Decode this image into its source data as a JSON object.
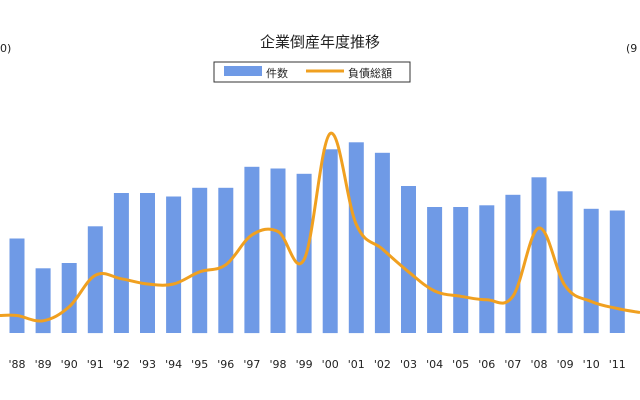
{
  "chart_data": {
    "type": "bar",
    "title": "企業倒産年度推移",
    "legend": {
      "placement": "top-center",
      "bar_label": "件数",
      "line_label": "負債総額"
    },
    "left_axis_fragment": "0)",
    "right_axis_fragment": "(9",
    "categories": [
      "'88",
      "'89",
      "'90",
      "'91",
      "'92",
      "'93",
      "'94",
      "'95",
      "'96",
      "'97",
      "'98",
      "'99",
      "'00",
      "'01",
      "'02",
      "'03",
      "'04",
      "'05",
      "'06",
      "'07",
      "'08",
      "'09",
      "'10",
      "'11"
    ],
    "series": [
      {
        "name": "件数",
        "type": "bar",
        "color": "#6f9ae6",
        "values": [
          54,
          37,
          40,
          61,
          80,
          80,
          78,
          83,
          83,
          95,
          94,
          91,
          105,
          109,
          103,
          84,
          72,
          72,
          73,
          79,
          89,
          81,
          71,
          70
        ]
      },
      {
        "name": "負債総額",
        "type": "line",
        "color": "#f0a020",
        "values": [
          10,
          7,
          15,
          33,
          31,
          28,
          28,
          35,
          39,
          56,
          58,
          42,
          114,
          62,
          48,
          35,
          24,
          21,
          19,
          21,
          60,
          27,
          18,
          14
        ]
      }
    ],
    "ylim": [
      0,
      140
    ],
    "grid": false
  }
}
